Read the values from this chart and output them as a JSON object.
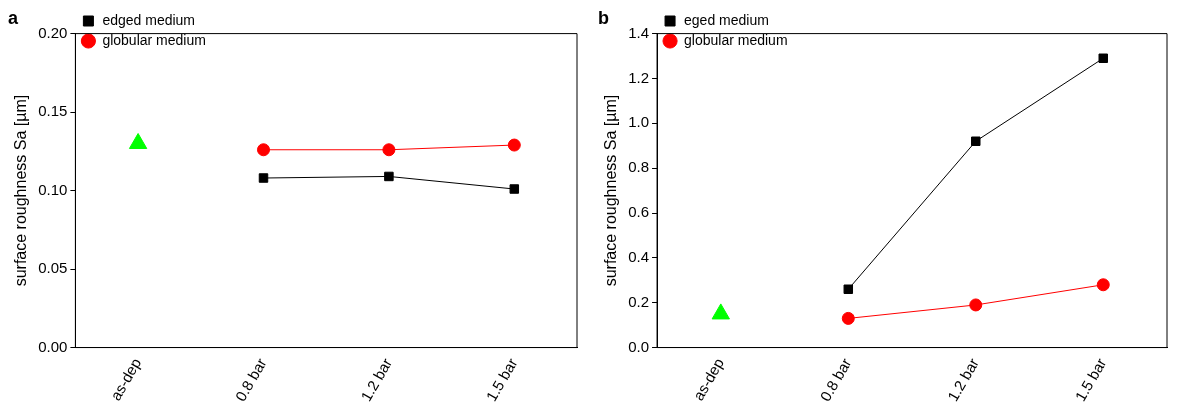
{
  "chart_data": [
    {
      "type": "line",
      "title": "a",
      "ylabel": "surface roughness Sa [µm]",
      "categories": [
        "as-dep",
        "0.8 bar",
        "1.2 bar",
        "1.5 bar"
      ],
      "ylim": [
        0,
        0.2
      ],
      "yticks": [
        {
          "value": 0,
          "label": "0.00"
        },
        {
          "value": 0.05,
          "label": "0.05"
        },
        {
          "value": 0.1,
          "label": "0.10"
        },
        {
          "value": 0.15,
          "label": "0.15"
        },
        {
          "value": 0.2,
          "label": "0.20"
        }
      ],
      "grid": false,
      "legend": "top left",
      "series": [
        {
          "name": "edged medium",
          "color": "#000000",
          "marker": "square",
          "values": [
            null,
            0.108,
            0.109,
            0.101
          ]
        },
        {
          "name": "globular medium",
          "color": "#ff0000",
          "marker": "circle",
          "values": [
            null,
            0.126,
            0.126,
            0.129
          ]
        },
        {
          "type": "scatter",
          "color": "#00ff00",
          "marker": "triangle",
          "values": [
            0.13,
            null,
            null,
            null
          ]
        }
      ]
    },
    {
      "type": "line",
      "title": "b",
      "ylabel": "surface roughness Sa [µm]",
      "categories": [
        "as-dep",
        "0.8 bar",
        "1.2 bar",
        "1.5 bar"
      ],
      "ylim": [
        0,
        1.4
      ],
      "yticks": [
        {
          "value": 0,
          "label": "0.0"
        },
        {
          "value": 0.2,
          "label": "0.2"
        },
        {
          "value": 0.4,
          "label": "0.4"
        },
        {
          "value": 0.6,
          "label": "0.6"
        },
        {
          "value": 0.8,
          "label": "0.8"
        },
        {
          "value": 1,
          "label": "1.0"
        },
        {
          "value": 1.2,
          "label": "1.2"
        },
        {
          "value": 1.4,
          "label": "1.4"
        }
      ],
      "grid": false,
      "legend": "top left",
      "series": [
        {
          "name": "eged medium",
          "color": "#000000",
          "marker": "square",
          "values": [
            null,
            0.26,
            0.92,
            1.29
          ]
        },
        {
          "name": "globular medium",
          "color": "#ff0000",
          "marker": "circle",
          "values": [
            null,
            0.13,
            0.19,
            0.28
          ]
        },
        {
          "type": "scatter",
          "color": "#00ff00",
          "marker": "triangle",
          "values": [
            0.15,
            null,
            null,
            null
          ]
        }
      ]
    }
  ]
}
